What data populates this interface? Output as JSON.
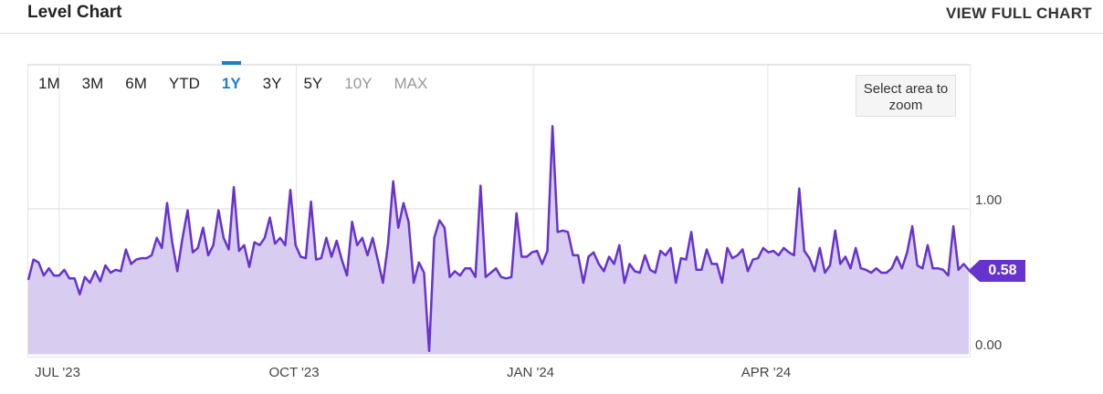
{
  "header": {
    "title": "Level Chart",
    "view_full": "VIEW FULL CHART"
  },
  "tabs": [
    {
      "label": "1M",
      "state": "normal"
    },
    {
      "label": "3M",
      "state": "normal"
    },
    {
      "label": "6M",
      "state": "normal"
    },
    {
      "label": "YTD",
      "state": "normal"
    },
    {
      "label": "1Y",
      "state": "active"
    },
    {
      "label": "3Y",
      "state": "normal"
    },
    {
      "label": "5Y",
      "state": "normal"
    },
    {
      "label": "10Y",
      "state": "disabled"
    },
    {
      "label": "MAX",
      "state": "disabled"
    }
  ],
  "zoom_hint": "Select area to zoom",
  "current_value": "0.58",
  "colors": {
    "line": "#6633cc",
    "fill": "#d8ccf0",
    "accent": "#1a7fd1"
  },
  "chart_data": {
    "type": "area",
    "title": "Level Chart",
    "x_range": [
      "2023-06-19",
      "2024-06-18"
    ],
    "ylim": [
      0,
      2.0
    ],
    "y_ticks": [
      {
        "value": 0,
        "label": "0.00"
      },
      {
        "value": 1,
        "label": "1.00"
      }
    ],
    "x_ticks": [
      {
        "date": "2023-07-01",
        "label": "JUL '23"
      },
      {
        "date": "2023-10-01",
        "label": "OCT '23"
      },
      {
        "date": "2024-01-01",
        "label": "JAN '24"
      },
      {
        "date": "2024-04-01",
        "label": "APR '24"
      }
    ],
    "grid": true,
    "last_value": 0.58,
    "values": [
      0.51,
      0.65,
      0.63,
      0.54,
      0.59,
      0.54,
      0.54,
      0.58,
      0.52,
      0.52,
      0.41,
      0.53,
      0.49,
      0.57,
      0.5,
      0.61,
      0.56,
      0.58,
      0.57,
      0.72,
      0.62,
      0.65,
      0.66,
      0.66,
      0.68,
      0.8,
      0.73,
      1.04,
      0.77,
      0.57,
      0.8,
      0.99,
      0.7,
      0.73,
      0.87,
      0.68,
      0.75,
      0.99,
      0.8,
      0.72,
      1.15,
      0.71,
      0.75,
      0.6,
      0.77,
      0.75,
      0.8,
      0.94,
      0.76,
      0.8,
      0.75,
      1.13,
      0.75,
      0.67,
      0.66,
      1.05,
      0.65,
      0.66,
      0.8,
      0.67,
      0.78,
      0.65,
      0.54,
      0.91,
      0.75,
      0.8,
      0.68,
      0.8,
      0.65,
      0.49,
      0.76,
      1.19,
      0.87,
      1.04,
      0.91,
      0.49,
      0.63,
      0.56,
      0.02,
      0.8,
      0.92,
      0.87,
      0.53,
      0.57,
      0.54,
      0.59,
      0.59,
      0.53,
      1.16,
      0.53,
      0.56,
      0.59,
      0.53,
      0.52,
      0.53,
      0.97,
      0.67,
      0.67,
      0.7,
      0.71,
      0.62,
      0.71,
      1.57,
      0.84,
      0.85,
      0.84,
      0.68,
      0.68,
      0.49,
      0.67,
      0.7,
      0.62,
      0.57,
      0.67,
      0.62,
      0.75,
      0.49,
      0.62,
      0.57,
      0.56,
      0.68,
      0.58,
      0.56,
      0.71,
      0.68,
      0.73,
      0.49,
      0.66,
      0.65,
      0.84,
      0.58,
      0.58,
      0.72,
      0.62,
      0.62,
      0.49,
      0.73,
      0.66,
      0.68,
      0.72,
      0.57,
      0.65,
      0.66,
      0.73,
      0.7,
      0.71,
      0.68,
      0.73,
      0.7,
      0.68,
      1.14,
      0.71,
      0.66,
      0.57,
      0.73,
      0.56,
      0.61,
      0.85,
      0.62,
      0.67,
      0.59,
      0.73,
      0.59,
      0.58,
      0.56,
      0.59,
      0.56,
      0.56,
      0.59,
      0.67,
      0.59,
      0.7,
      0.88,
      0.61,
      0.59,
      0.75,
      0.59,
      0.59,
      0.58,
      0.54,
      0.88,
      0.58,
      0.62,
      0.58
    ]
  }
}
